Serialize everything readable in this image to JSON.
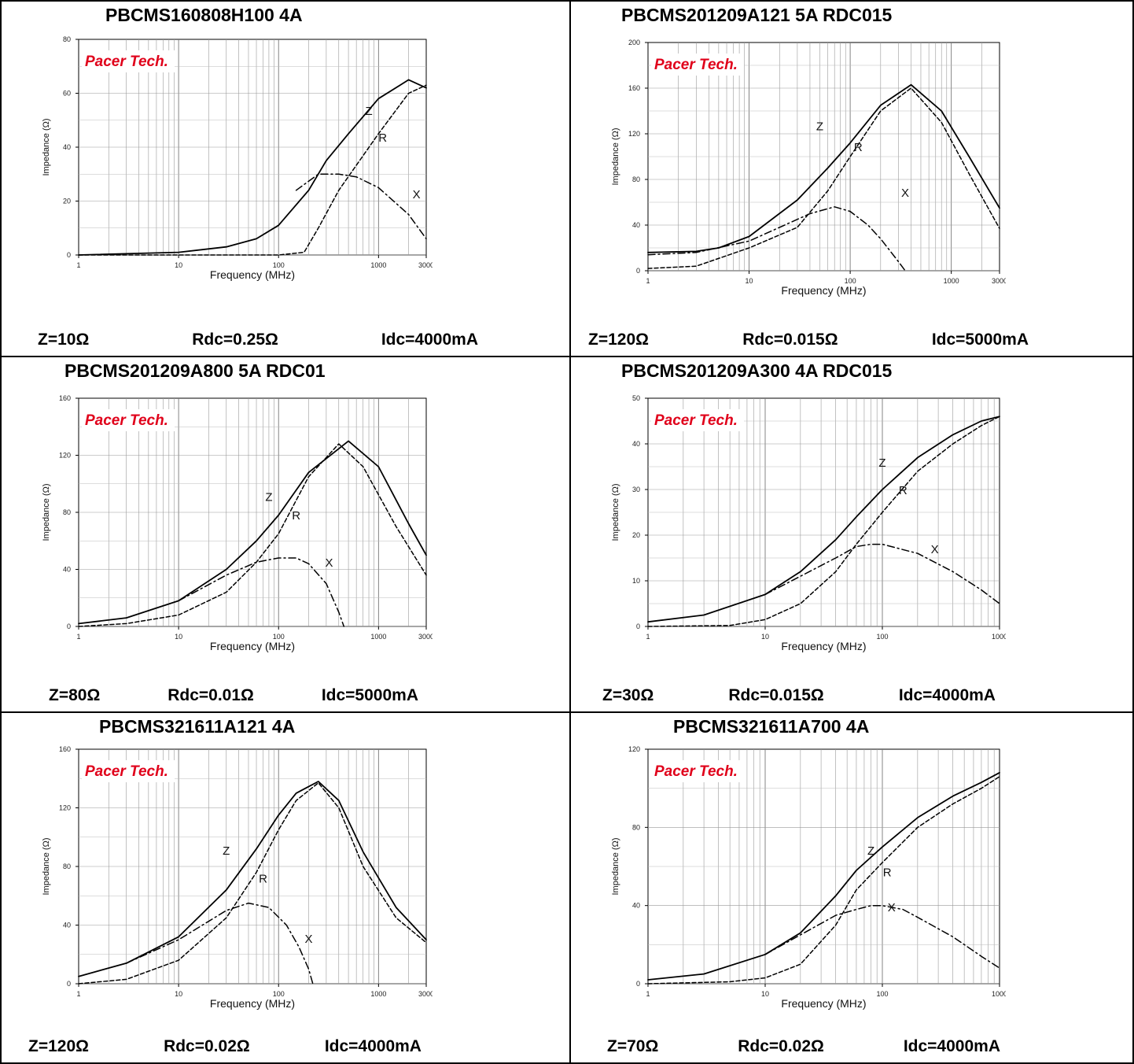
{
  "panels": [
    {
      "title": "PBCMS160808H100 4A",
      "brand": "Pacer Tech.",
      "specs": {
        "z": "Z=10Ω",
        "rdc": "Rdc=0.25Ω",
        "idc": "Idc=4000mA"
      },
      "chart_data": {
        "type": "line",
        "x_scale": "log",
        "xlabel": "Frequency (MHz)",
        "ylabel": "Impedance (Ω)",
        "xlim": [
          1,
          3000
        ],
        "ylim": [
          0,
          80
        ],
        "xticks": [
          "1",
          "10",
          "100",
          "1000",
          "3000"
        ],
        "yticks": [
          "0",
          "20",
          "40",
          "60",
          "80"
        ],
        "series": [
          {
            "name": "Z",
            "style": "solid",
            "x": [
              1,
              10,
              30,
              60,
              100,
              200,
              300,
              500,
              1000,
              2000,
              3000
            ],
            "y": [
              0,
              1,
              3,
              6,
              11,
              24,
              35,
              45,
              58,
              65,
              62
            ]
          },
          {
            "name": "R",
            "style": "dashed",
            "x": [
              1,
              100,
              180,
              250,
              400,
              1000,
              2000,
              3000
            ],
            "y": [
              0,
              0,
              1,
              10,
              24,
              45,
              60,
              63
            ]
          },
          {
            "name": "X",
            "style": "dashdot",
            "x": [
              150,
              250,
              400,
              600,
              1000,
              2000,
              3000
            ],
            "y": [
              24,
              30,
              30,
              29,
              25,
              15,
              6
            ]
          }
        ],
        "labels": [
          {
            "text": "Z",
            "x": 800,
            "y": 52
          },
          {
            "text": "R",
            "x": 1100,
            "y": 42
          },
          {
            "text": "X",
            "x": 2400,
            "y": 21
          }
        ]
      }
    },
    {
      "title": "PBCMS201209A121 5A RDC015",
      "brand": "Pacer Tech.",
      "specs": {
        "z": "Z=120Ω",
        "rdc": "Rdc=0.015Ω",
        "idc": "Idc=5000mA"
      },
      "chart_data": {
        "type": "line",
        "x_scale": "log",
        "xlabel": "Frequency (MHz)",
        "ylabel": "Impedance (Ω)",
        "xlim": [
          1,
          3000
        ],
        "ylim": [
          0,
          200
        ],
        "xticks": [
          "1",
          "10",
          "100",
          "1000",
          "3000"
        ],
        "yticks": [
          "0",
          "40",
          "80",
          "120",
          "160",
          "200"
        ],
        "series": [
          {
            "name": "Z",
            "style": "solid",
            "x": [
              1,
              3,
              5,
              10,
              30,
              60,
              100,
              200,
              400,
              800,
              1500,
              3000
            ],
            "y": [
              16,
              17,
              20,
              30,
              62,
              90,
              112,
              145,
              163,
              140,
              100,
              55
            ]
          },
          {
            "name": "R",
            "style": "dashed",
            "x": [
              1,
              3,
              10,
              30,
              60,
              100,
              200,
              400,
              800,
              1500,
              3000
            ],
            "y": [
              2,
              4,
              20,
              38,
              70,
              100,
              140,
              160,
              130,
              85,
              37
            ]
          },
          {
            "name": "X",
            "style": "dashdot",
            "x": [
              1,
              3,
              10,
              20,
              40,
              70,
              100,
              150,
              200,
              300,
              350
            ],
            "y": [
              14,
              16,
              26,
              38,
              50,
              56,
              52,
              40,
              28,
              8,
              0
            ]
          }
        ],
        "labels": [
          {
            "text": "Z",
            "x": 50,
            "y": 123
          },
          {
            "text": "R",
            "x": 120,
            "y": 105
          },
          {
            "text": "X",
            "x": 350,
            "y": 65
          }
        ]
      }
    },
    {
      "title": "PBCMS201209A800 5A RDC01",
      "brand": "Pacer Tech.",
      "specs": {
        "z": "Z=80Ω",
        "rdc": "Rdc=0.01Ω",
        "idc": "Idc=5000mA"
      },
      "chart_data": {
        "type": "line",
        "x_scale": "log",
        "xlabel": "Frequency (MHz)",
        "ylabel": "Impedance (Ω)",
        "xlim": [
          1,
          3000
        ],
        "ylim": [
          0,
          160
        ],
        "xticks": [
          "1",
          "10",
          "100",
          "1000",
          "3000"
        ],
        "yticks": [
          "0",
          "40",
          "80",
          "120",
          "160"
        ],
        "series": [
          {
            "name": "Z",
            "style": "solid",
            "x": [
              1,
              3,
              10,
              30,
              60,
              100,
              200,
              500,
              1000,
              2000,
              3000
            ],
            "y": [
              2,
              6,
              18,
              40,
              60,
              78,
              108,
              130,
              112,
              72,
              50
            ]
          },
          {
            "name": "R",
            "style": "dashed",
            "x": [
              1,
              3,
              10,
              30,
              60,
              100,
              200,
              400,
              700,
              1500,
              3000
            ],
            "y": [
              0,
              2,
              8,
              24,
              45,
              65,
              105,
              128,
              112,
              70,
              36
            ]
          },
          {
            "name": "X",
            "style": "dashdot",
            "x": [
              10,
              30,
              60,
              100,
              150,
              200,
              300,
              400,
              450
            ],
            "y": [
              18,
              36,
              45,
              48,
              48,
              44,
              30,
              10,
              0
            ]
          }
        ],
        "labels": [
          {
            "text": "Z",
            "x": 80,
            "y": 88
          },
          {
            "text": "R",
            "x": 150,
            "y": 75
          },
          {
            "text": "X",
            "x": 320,
            "y": 42
          }
        ]
      }
    },
    {
      "title": "PBCMS201209A300 4A RDC015",
      "brand": "Pacer Tech.",
      "specs": {
        "z": "Z=30Ω",
        "rdc": "Rdc=0.015Ω",
        "idc": "Idc=4000mA"
      },
      "chart_data": {
        "type": "line",
        "x_scale": "log",
        "xlabel": "Frequency (MHz)",
        "ylabel": "Impedance (Ω)",
        "xlim": [
          1,
          1000
        ],
        "ylim": [
          0,
          50
        ],
        "xticks": [
          "1",
          "10",
          "100",
          "1000"
        ],
        "yticks": [
          "0",
          "10",
          "20",
          "30",
          "40",
          "50"
        ],
        "series": [
          {
            "name": "Z",
            "style": "solid",
            "x": [
              1,
              3,
              10,
              20,
              40,
              60,
              100,
              200,
              400,
              700,
              1000
            ],
            "y": [
              1,
              2.5,
              7,
              12,
              19,
              24,
              30,
              37,
              42,
              45,
              46
            ]
          },
          {
            "name": "R",
            "style": "dashed",
            "x": [
              1,
              5,
              10,
              20,
              40,
              60,
              100,
              200,
              400,
              700,
              1000
            ],
            "y": [
              0,
              0.2,
              1.5,
              5,
              12,
              18,
              25,
              34,
              40,
              44,
              46
            ]
          },
          {
            "name": "X",
            "style": "dashdot",
            "x": [
              10,
              20,
              40,
              60,
              80,
              100,
              200,
              400,
              700,
              1000
            ],
            "y": [
              7,
              11,
              15,
              17.5,
              18,
              18,
              16,
              12,
              8,
              5
            ]
          }
        ],
        "labels": [
          {
            "text": "Z",
            "x": 100,
            "y": 35
          },
          {
            "text": "R",
            "x": 150,
            "y": 29
          },
          {
            "text": "X",
            "x": 280,
            "y": 16
          }
        ]
      }
    },
    {
      "title": "PBCMS321611A121 4A",
      "brand": "Pacer Tech.",
      "specs": {
        "z": "Z=120Ω",
        "rdc": "Rdc=0.02Ω",
        "idc": "Idc=4000mA"
      },
      "chart_data": {
        "type": "line",
        "x_scale": "log",
        "xlabel": "Frequency (MHz)",
        "ylabel": "Impedance (Ω)",
        "xlim": [
          1,
          3000
        ],
        "ylim": [
          0,
          160
        ],
        "xticks": [
          "1",
          "10",
          "100",
          "1000",
          "3000"
        ],
        "yticks": [
          "0",
          "40",
          "80",
          "120",
          "160"
        ],
        "series": [
          {
            "name": "Z",
            "style": "solid",
            "x": [
              1,
              3,
              10,
              30,
              60,
              100,
              150,
              250,
              400,
              700,
              1500,
              3000
            ],
            "y": [
              5,
              14,
              32,
              64,
              92,
              115,
              130,
              138,
              125,
              90,
              52,
              30
            ]
          },
          {
            "name": "R",
            "style": "dashed",
            "x": [
              1,
              3,
              10,
              30,
              60,
              100,
              150,
              250,
              400,
              700,
              1500,
              3000
            ],
            "y": [
              0,
              3,
              16,
              45,
              76,
              105,
              125,
              137,
              120,
              80,
              45,
              28
            ]
          },
          {
            "name": "X",
            "style": "dashdot",
            "x": [
              3,
              10,
              30,
              50,
              80,
              120,
              160,
              200,
              220
            ],
            "y": [
              14,
              30,
              50,
              55,
              52,
              40,
              25,
              10,
              0
            ]
          }
        ],
        "labels": [
          {
            "text": "Z",
            "x": 30,
            "y": 88
          },
          {
            "text": "R",
            "x": 70,
            "y": 69
          },
          {
            "text": "X",
            "x": 200,
            "y": 28
          }
        ]
      }
    },
    {
      "title": "PBCMS321611A700 4A",
      "brand": "Pacer Tech.",
      "specs": {
        "z": "Z=70Ω",
        "rdc": "Rdc=0.02Ω",
        "idc": "Idc=4000mA"
      },
      "chart_data": {
        "type": "line",
        "x_scale": "log",
        "xlabel": "Frequency (MHz)",
        "ylabel": "Impedance (Ω)",
        "xlim": [
          1,
          1000
        ],
        "ylim": [
          0,
          120
        ],
        "xticks": [
          "1",
          "10",
          "100",
          "1000"
        ],
        "yticks": [
          "0",
          "40",
          "80",
          "120"
        ],
        "series": [
          {
            "name": "Z",
            "style": "solid",
            "x": [
              1,
              3,
              10,
              20,
              40,
              60,
              100,
              200,
              400,
              700,
              1000
            ],
            "y": [
              2,
              5,
              15,
              26,
              45,
              58,
              70,
              85,
              96,
              103,
              108
            ]
          },
          {
            "name": "R",
            "style": "dashed",
            "x": [
              1,
              5,
              10,
              20,
              40,
              60,
              100,
              200,
              400,
              700,
              1000
            ],
            "y": [
              0,
              1,
              3,
              10,
              30,
              48,
              62,
              80,
              92,
              100,
              106
            ]
          },
          {
            "name": "X",
            "style": "dashdot",
            "x": [
              10,
              20,
              40,
              60,
              80,
              100,
              150,
              200,
              400,
              700,
              1000
            ],
            "y": [
              15,
              25,
              35,
              38,
              40,
              40,
              38,
              34,
              24,
              14,
              8
            ]
          }
        ],
        "labels": [
          {
            "text": "Z",
            "x": 80,
            "y": 66
          },
          {
            "text": "R",
            "x": 110,
            "y": 55
          },
          {
            "text": "X",
            "x": 120,
            "y": 37
          }
        ]
      }
    }
  ]
}
